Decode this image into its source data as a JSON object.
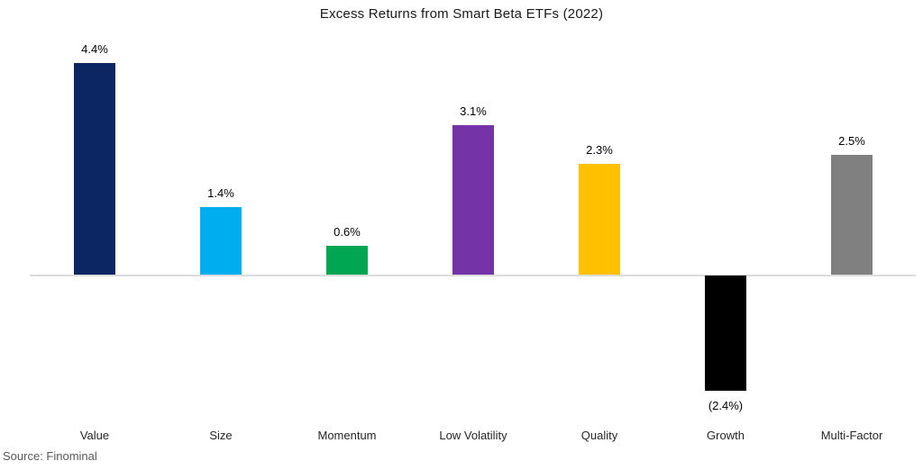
{
  "title": "Excess Returns from Smart Beta ETFs (2022)",
  "source": "Source: Finominal",
  "chart_data": {
    "type": "bar",
    "title": "Excess Returns from Smart Beta ETFs (2022)",
    "categories": [
      "Value",
      "Size",
      "Momentum",
      "Low Volatility",
      "Quality",
      "Growth",
      "Multi-Factor"
    ],
    "values": [
      4.4,
      1.4,
      0.6,
      3.1,
      2.3,
      -2.4,
      2.5
    ],
    "value_labels": [
      "4.4%",
      "1.4%",
      "0.6%",
      "3.1%",
      "2.3%",
      "(2.4%)",
      "2.5%"
    ],
    "bar_colors": [
      "#0c2663",
      "#00aeef",
      "#00a651",
      "#7533a8",
      "#ffc000",
      "#000000",
      "#808080"
    ],
    "xlabel": "",
    "ylabel": "",
    "ylim": [
      -3.0,
      5.0
    ],
    "grid": false,
    "legend": "none",
    "baseline_color": "#dcdcdc",
    "annotation": "Source: Finominal"
  }
}
